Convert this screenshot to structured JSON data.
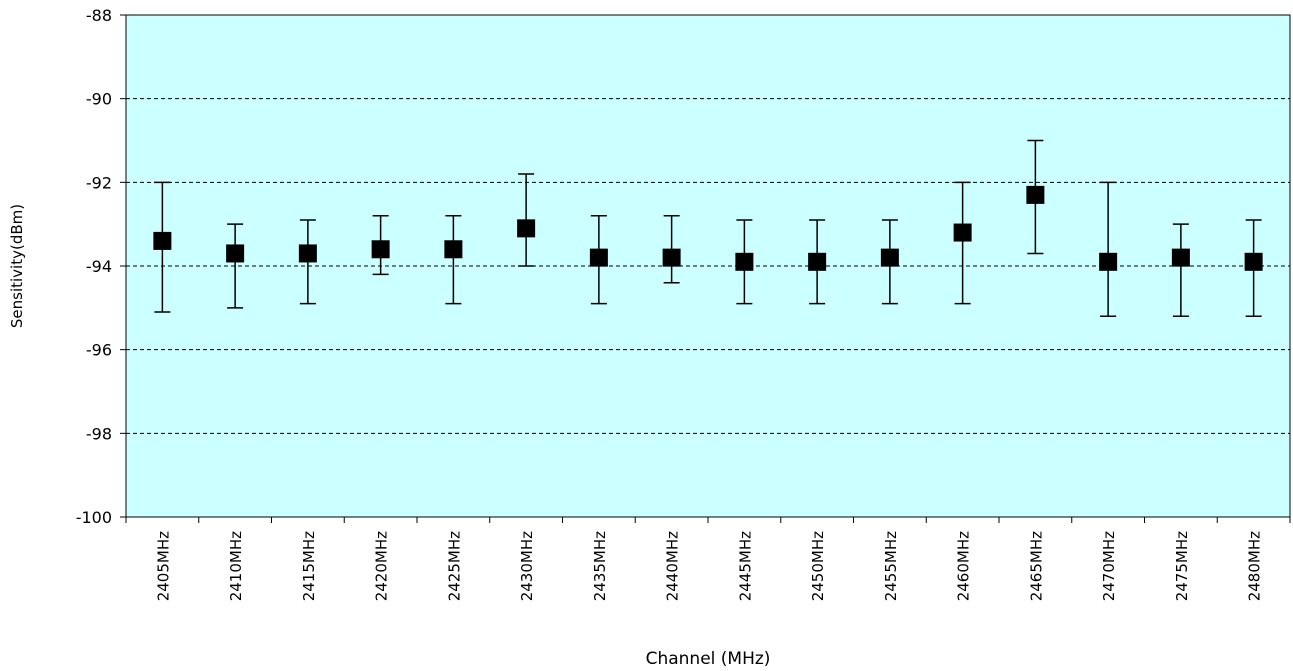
{
  "chart_data": {
    "type": "scatter",
    "title": "",
    "xlabel": "Channel (MHz)",
    "ylabel": "Sensitivity(dBm)",
    "ylim": [
      -100,
      -88
    ],
    "yticks": [
      "-88",
      "-90",
      "-92",
      "-94",
      "-96",
      "-98",
      "-100"
    ],
    "grid": true,
    "grid_style": "dashed",
    "plot_background": "#CCFFFF",
    "marker_color": "#000000",
    "categories": [
      "2405MHz",
      "2410MHz",
      "2415MHz",
      "2420MHz",
      "2425MHz",
      "2430MHz",
      "2435MHz",
      "2440MHz",
      "2445MHz",
      "2450MHz",
      "2455MHz",
      "2460MHz",
      "2465MHz",
      "2470MHz",
      "2475MHz",
      "2480MHz"
    ],
    "series": [
      {
        "values": [
          -93.4,
          -93.7,
          -93.7,
          -93.6,
          -93.6,
          -93.1,
          -93.8,
          -93.8,
          -93.9,
          -93.9,
          -93.8,
          -93.2,
          -92.3,
          -93.9,
          -93.8,
          -93.9
        ],
        "upper": [
          -92.0,
          -93.0,
          -92.9,
          -92.8,
          -92.8,
          -91.8,
          -92.8,
          -92.8,
          -92.9,
          -92.9,
          -92.9,
          -92.0,
          -91.0,
          -92.0,
          -93.0,
          -92.9
        ],
        "lower": [
          -95.1,
          -95.0,
          -94.9,
          -94.2,
          -94.9,
          -94.0,
          -94.9,
          -94.4,
          -94.9,
          -94.9,
          -94.9,
          -94.9,
          -93.7,
          -95.2,
          -95.2,
          -95.2
        ]
      }
    ]
  }
}
